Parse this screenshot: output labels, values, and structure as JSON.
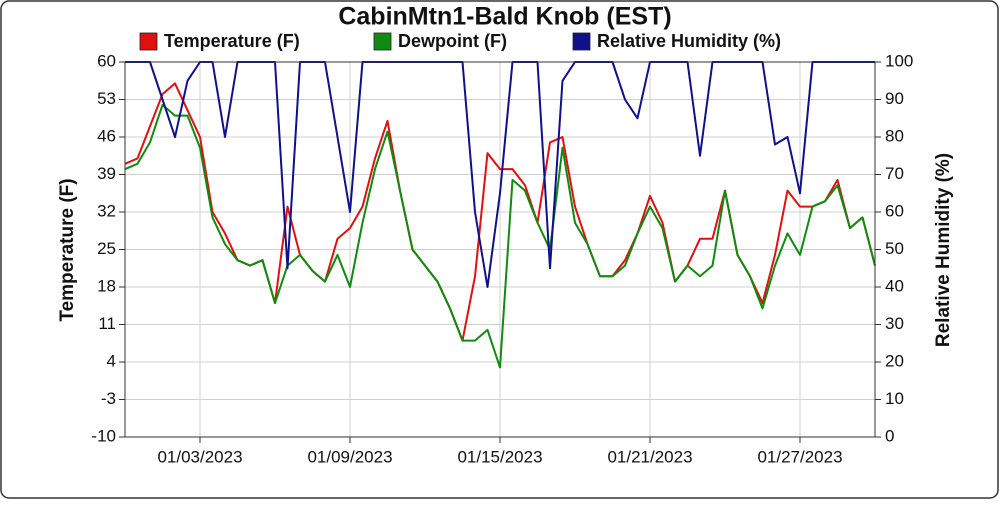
{
  "chart_data": {
    "type": "line",
    "title": "CabinMtn1-Bald Knob (EST)",
    "y_label": "Temperature (F)",
    "y2_label": "Relative Humidity (%)",
    "categories": [
      null,
      null,
      null,
      null,
      null,
      null,
      "01/03/2023",
      null,
      null,
      null,
      null,
      null,
      null,
      null,
      null,
      null,
      null,
      null,
      "01/09/2023",
      null,
      null,
      null,
      null,
      null,
      null,
      null,
      null,
      null,
      null,
      null,
      "01/15/2023",
      null,
      null,
      null,
      null,
      null,
      null,
      null,
      null,
      null,
      null,
      null,
      "01/21/2023",
      null,
      null,
      null,
      null,
      null,
      null,
      null,
      null,
      null,
      null,
      null,
      "01/27/2023",
      null,
      null,
      null,
      null,
      null,
      null
    ],
    "series": [
      {
        "name": "Temperature (F)",
        "color": "#e01010",
        "values": [
          41,
          42,
          48,
          54,
          56,
          51,
          46,
          32,
          28,
          23,
          22,
          23,
          15,
          33,
          24,
          21,
          19,
          27,
          29,
          33,
          42,
          49,
          36,
          25,
          22,
          19,
          14,
          8,
          20,
          43,
          40,
          40,
          37,
          30,
          45,
          46,
          33,
          26,
          20,
          20,
          23,
          28,
          35,
          30,
          19,
          22,
          27,
          27,
          36,
          24,
          20,
          15,
          24,
          36,
          33,
          33,
          34,
          38,
          29,
          31,
          22
        ]
      },
      {
        "name": "Dewpoint (F)",
        "color": "#108a10",
        "values": [
          40,
          41,
          45,
          52,
          50,
          50,
          44,
          31,
          26,
          23,
          22,
          23,
          15,
          22,
          24,
          21,
          19,
          24,
          18,
          30,
          40,
          47,
          36,
          25,
          22,
          19,
          14,
          8,
          8,
          10,
          3,
          38,
          36,
          30,
          25,
          44,
          30,
          26,
          20,
          20,
          22,
          28,
          33,
          29,
          19,
          22,
          20,
          22,
          36,
          24,
          20,
          14,
          22,
          28,
          24,
          33,
          34,
          37,
          29,
          31,
          22
        ]
      },
      {
        "name": "Relative Humidity (%)",
        "color": "#10108a",
        "axis": "y2",
        "values": [
          100,
          100,
          100,
          90,
          80,
          95,
          100,
          100,
          80,
          100,
          100,
          100,
          100,
          45,
          100,
          100,
          100,
          80,
          60,
          100,
          100,
          100,
          100,
          100,
          100,
          100,
          100,
          100,
          60,
          40,
          65,
          100,
          100,
          100,
          45,
          95,
          100,
          100,
          100,
          100,
          90,
          85,
          100,
          100,
          100,
          100,
          75,
          100,
          100,
          100,
          100,
          100,
          78,
          80,
          65,
          100,
          100,
          100,
          100,
          100,
          100
        ]
      }
    ],
    "ylim": [
      -10,
      60
    ],
    "yticks": [
      -10,
      -3,
      4,
      11,
      18,
      25,
      32,
      39,
      46,
      53,
      60
    ],
    "y2lim": [
      0,
      100
    ],
    "y2ticks": [
      0,
      10,
      20,
      30,
      40,
      50,
      60,
      70,
      80,
      90,
      100
    ],
    "grid": true
  }
}
